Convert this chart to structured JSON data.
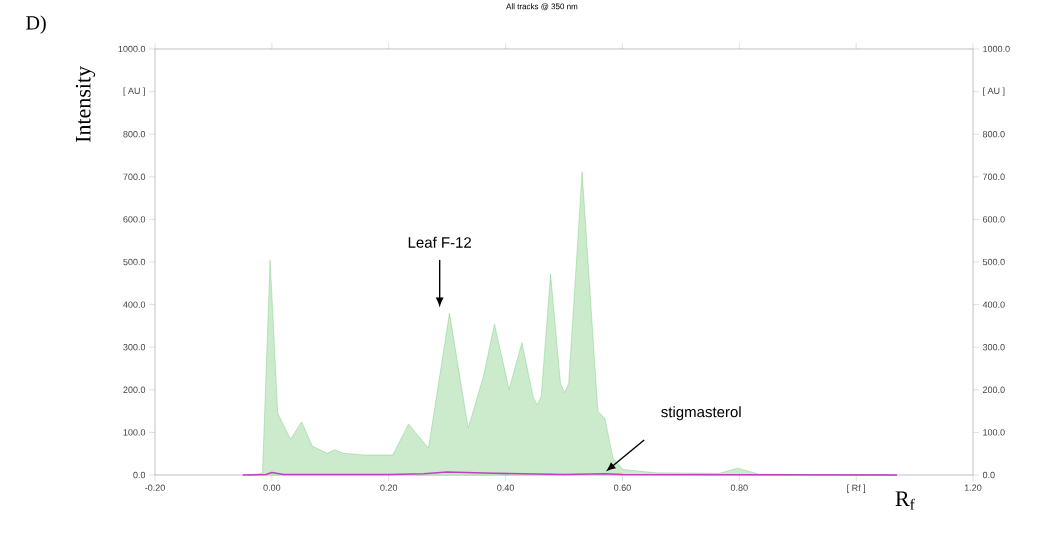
{
  "chart_data": {
    "type": "area",
    "title": "All tracks @ 350 nm",
    "xlabel": "R$_{f}$",
    "ylabel": "Intensity",
    "xlim": [
      -0.2,
      1.2
    ],
    "ylim": [
      0,
      1000
    ],
    "y2lim": [
      0,
      1000
    ],
    "xticks": [
      {
        "value": -0.2,
        "label": "-0.20"
      },
      {
        "value": 0,
        "label": "0.00"
      },
      {
        "value": 0.2,
        "label": "0.20"
      },
      {
        "value": 0.4,
        "label": "0.40"
      },
      {
        "value": 0.6,
        "label": "0.60"
      },
      {
        "value": 0.8,
        "label": "0.80"
      },
      {
        "value": 1.0,
        "label": "[ Rf ]"
      },
      {
        "value": 1.2,
        "label": "1.20"
      }
    ],
    "yticks": [
      {
        "value": 0,
        "label": "0.0"
      },
      {
        "value": 100,
        "label": "100.0"
      },
      {
        "value": 200,
        "label": "200.0"
      },
      {
        "value": 300,
        "label": "300.0"
      },
      {
        "value": 400,
        "label": "400.0"
      },
      {
        "value": 500,
        "label": "500.0"
      },
      {
        "value": 600,
        "label": "600.0"
      },
      {
        "value": 700,
        "label": "700.0"
      },
      {
        "value": 800,
        "label": "800.0"
      },
      {
        "value": 900,
        "label": "[ AU ]"
      },
      {
        "value": 1000,
        "label": "1000.0"
      }
    ],
    "y2ticks": [
      {
        "value": 0,
        "label": "0.0"
      },
      {
        "value": 100,
        "label": "100.0"
      },
      {
        "value": 200,
        "label": "200.0"
      },
      {
        "value": 300,
        "label": "300.0"
      },
      {
        "value": 400,
        "label": "400.0"
      },
      {
        "value": 500,
        "label": "500.0"
      },
      {
        "value": 600,
        "label": "600.0"
      },
      {
        "value": 700,
        "label": "700.0"
      },
      {
        "value": 800,
        "label": "800.0"
      },
      {
        "value": 900,
        "label": "[ AU ]"
      },
      {
        "value": 1000,
        "label": "1000.0"
      }
    ],
    "series": [
      {
        "color": "#4cb84c",
        "x": [
          -0.04,
          -0.016,
          -0.003,
          0.01,
          0.032,
          0.051,
          0.069,
          0.095,
          0.107,
          0.123,
          0.157,
          0.207,
          0.234,
          0.268,
          0.304,
          0.336,
          0.362,
          0.381,
          0.406,
          0.428,
          0.447,
          0.454,
          0.461,
          0.477,
          0.494,
          0.501,
          0.508,
          0.531,
          0.558,
          0.57,
          0.584,
          0.601,
          0.658,
          0.766,
          0.797,
          0.834,
          1.067
        ],
        "values": [
          0,
          4,
          505,
          145,
          84,
          125,
          68,
          51,
          59,
          51,
          47,
          47,
          120,
          63,
          380,
          110,
          231,
          354,
          201,
          311,
          185,
          164,
          185,
          472,
          215,
          193,
          215,
          712,
          149,
          133,
          39,
          13,
          5,
          4,
          16,
          2,
          0
        ]
      },
      {
        "type": "line",
        "color": "#c040c0",
        "x": [
          -0.05,
          -0.01,
          0.0,
          0.02,
          0.2,
          0.26,
          0.3,
          0.38,
          0.5,
          0.57,
          0.6,
          1.07
        ],
        "values": [
          0,
          1,
          6,
          1,
          1,
          3,
          7,
          4,
          1,
          3,
          1,
          0
        ]
      }
    ],
    "annotations": [
      "D)",
      "Leaf F-12",
      "stigmasterol"
    ],
    "grid": false,
    "legend": false
  }
}
